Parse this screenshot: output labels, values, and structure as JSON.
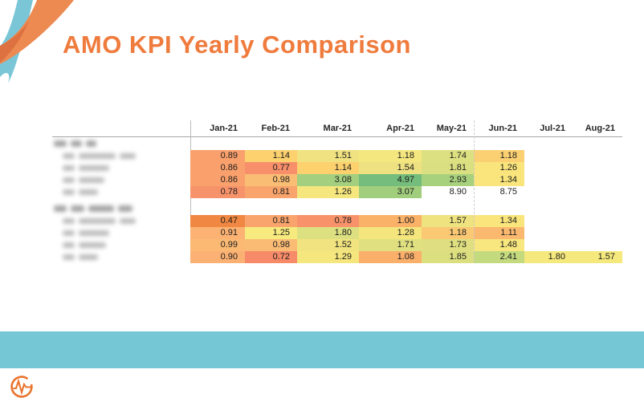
{
  "slide": {
    "title": "AMO KPI Yearly Comparison",
    "footer": {
      "logo_icon": "pulse-circle-logo"
    }
  },
  "colors": {
    "accent": "#EF7B3D",
    "band_teal": "#76C7D6",
    "swoosh_teal": "#7AC6D7",
    "swoosh_orange": "#EC8A52",
    "swoosh_dark_orange": "#DB6F3E",
    "logo_orange": "#E8742E",
    "grid_line": "#A6A6A6",
    "divider_solid": "#BDBDBD",
    "divider_dashed": "#C8C8C8",
    "value_text": "#1C1C1C"
  },
  "table": {
    "columns": [
      "Jan-21",
      "Feb-21",
      "Mar-21",
      "Apr-21",
      "May-21",
      "Jun-21",
      "Jul-21",
      "Aug-21"
    ],
    "dashed_divider_after": "May-21",
    "row_labels_redacted": true,
    "groups": [
      {
        "header_blur_segments": [
          16,
          14,
          13
        ],
        "rows": [
          {
            "blur_segments": [
              15,
              46,
              20
            ],
            "cells": [
              [
                "0.89",
                "#F9A06C"
              ],
              [
                "1.14",
                "#FCD16E"
              ],
              [
                "1.51",
                "#F0E281"
              ],
              [
                "1.18",
                "#F5E77F"
              ],
              [
                "1.74",
                "#DDE081"
              ],
              [
                "1.18",
                "#FBD072"
              ],
              null,
              null
            ]
          },
          {
            "blur_segments": [
              15,
              38
            ],
            "cells": [
              [
                "0.86",
                "#F9A06C"
              ],
              [
                "0.77",
                "#F78F6A"
              ],
              [
                "1.14",
                "#FCD16E"
              ],
              [
                "1.54",
                "#EDE182"
              ],
              [
                "1.81",
                "#DADF81"
              ],
              [
                "1.26",
                "#F9E57C"
              ],
              null,
              null
            ]
          },
          {
            "blur_segments": [
              15,
              32
            ],
            "cells": [
              [
                "0.86",
                "#F9A06C"
              ],
              [
                "0.98",
                "#FABD74"
              ],
              [
                "3.08",
                "#A3CF7E"
              ],
              [
                "4.97",
                "#74BD7C"
              ],
              [
                "2.93",
                "#A8D17E"
              ],
              [
                "1.34",
                "#FAE57C"
              ],
              null,
              null
            ]
          },
          {
            "blur_segments": [
              15,
              24
            ],
            "cells": [
              [
                "0.78",
                "#F7936B"
              ],
              [
                "0.81",
                "#F8A46C"
              ],
              [
                "1.26",
                "#F5E67D"
              ],
              [
                "3.07",
                "#A1CE7D"
              ],
              [
                "8.90",
                ""
              ],
              [
                "8.75",
                ""
              ],
              null,
              null
            ]
          }
        ]
      },
      {
        "header_blur_segments": [
          16,
          17,
          32,
          18
        ],
        "rows": [
          {
            "blur_segments": [
              15,
              46,
              20
            ],
            "cells": [
              [
                "0.47",
                "#F08742"
              ],
              [
                "0.81",
                "#F8A46C"
              ],
              [
                "0.78",
                "#F7926B"
              ],
              [
                "1.00",
                "#FAB168"
              ],
              [
                "1.57",
                "#EFE380"
              ],
              [
                "1.34",
                "#FAE57C"
              ],
              null,
              null
            ]
          },
          {
            "blur_segments": [
              15,
              38
            ],
            "cells": [
              [
                "0.91",
                "#FBB273"
              ],
              [
                "1.25",
                "#F7EA7F"
              ],
              [
                "1.80",
                "#DCE081"
              ],
              [
                "1.28",
                "#F4E67D"
              ],
              [
                "1.18",
                "#FBC873"
              ],
              [
                "1.11",
                "#FBB96F"
              ],
              null,
              null
            ]
          },
          {
            "blur_segments": [
              15,
              34
            ],
            "cells": [
              [
                "0.99",
                "#FBB974"
              ],
              [
                "0.98",
                "#FABC74"
              ],
              [
                "1.52",
                "#F1E37F"
              ],
              [
                "1.71",
                "#E0E081"
              ],
              [
                "1.73",
                "#DFDF81"
              ],
              [
                "1.48",
                "#F8E67E"
              ],
              null,
              null
            ]
          },
          {
            "blur_segments": [
              15,
              24
            ],
            "cells": [
              [
                "0.90",
                "#FBB173"
              ],
              [
                "0.72",
                "#F78B69"
              ],
              [
                "1.29",
                "#F5E67D"
              ],
              [
                "1.08",
                "#FAAF6B"
              ],
              [
                "1.85",
                "#DBDF80"
              ],
              [
                "2.41",
                "#C3DA7F"
              ],
              [
                "1.80",
                "#F5E97E"
              ],
              [
                "1.57",
                "#F5E97E"
              ]
            ]
          }
        ]
      }
    ]
  },
  "chart_data": {
    "type": "heatmap",
    "title": "AMO KPI Yearly Comparison",
    "columns": [
      "Jan-21",
      "Feb-21",
      "Mar-21",
      "Apr-21",
      "May-21",
      "Jun-21",
      "Jul-21",
      "Aug-21"
    ],
    "color_scale": "red-yellow-green",
    "row_labels_redacted_in_source": true,
    "groups": [
      {
        "group_label": "[redacted]",
        "rows": [
          {
            "label": "[redacted]",
            "values": [
              0.89,
              1.14,
              1.51,
              1.18,
              1.74,
              1.18,
              null,
              null
            ]
          },
          {
            "label": "[redacted]",
            "values": [
              0.86,
              0.77,
              1.14,
              1.54,
              1.81,
              1.26,
              null,
              null
            ]
          },
          {
            "label": "[redacted]",
            "values": [
              0.86,
              0.98,
              3.08,
              4.97,
              2.93,
              1.34,
              null,
              null
            ]
          },
          {
            "label": "[redacted]",
            "values": [
              0.78,
              0.81,
              1.26,
              3.07,
              8.9,
              8.75,
              null,
              null
            ]
          }
        ]
      },
      {
        "group_label": "[redacted]",
        "rows": [
          {
            "label": "[redacted]",
            "values": [
              0.47,
              0.81,
              0.78,
              1.0,
              1.57,
              1.34,
              null,
              null
            ]
          },
          {
            "label": "[redacted]",
            "values": [
              0.91,
              1.25,
              1.8,
              1.28,
              1.18,
              1.11,
              null,
              null
            ]
          },
          {
            "label": "[redacted]",
            "values": [
              0.99,
              0.98,
              1.52,
              1.71,
              1.73,
              1.48,
              null,
              null
            ]
          },
          {
            "label": "[redacted]",
            "values": [
              0.9,
              0.72,
              1.29,
              1.08,
              1.85,
              2.41,
              1.8,
              1.57
            ]
          }
        ]
      }
    ]
  }
}
